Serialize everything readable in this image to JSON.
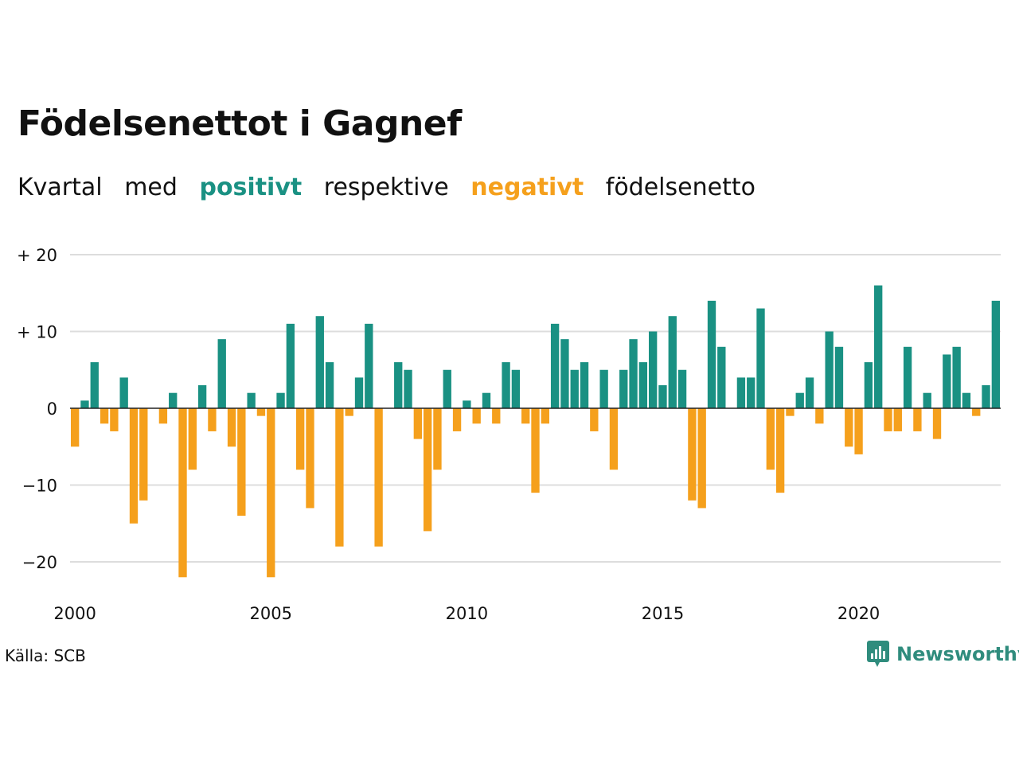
{
  "title": "Födelsenettot i Gagnef",
  "subtitle": {
    "w1": "Kvartal",
    "w2": "med",
    "positive": "positivt",
    "w4": "respektive",
    "negative": "negativt",
    "w6": "födelsenetto"
  },
  "source": "Källa: SCB",
  "brand": "Newsworthy",
  "colors": {
    "positive": "#1a9183",
    "negative": "#f5a01c",
    "grid": "#dddddd",
    "axis": "#222222"
  },
  "chart_data": {
    "type": "bar",
    "x_start_year": 2000,
    "periods_per_year": 4,
    "ylim": [
      -24,
      20
    ],
    "yticks": [
      {
        "value": 20,
        "label": "+ 20"
      },
      {
        "value": 10,
        "label": "+ 10"
      },
      {
        "value": 0,
        "label": "0"
      },
      {
        "value": -10,
        "label": "−10"
      },
      {
        "value": -20,
        "label": "−20"
      }
    ],
    "xticks": [
      {
        "value": 2000,
        "label": "2000"
      },
      {
        "value": 2005,
        "label": "2005"
      },
      {
        "value": 2010,
        "label": "2010"
      },
      {
        "value": 2015,
        "label": "2015"
      },
      {
        "value": 2020,
        "label": "2020"
      }
    ],
    "values": [
      -5,
      1,
      6,
      -2,
      -3,
      4,
      -15,
      -12,
      0,
      -2,
      2,
      -22,
      -8,
      3,
      -3,
      9,
      -5,
      -14,
      2,
      -1,
      -22,
      2,
      11,
      -8,
      -13,
      12,
      6,
      -18,
      -1,
      4,
      11,
      -18,
      0,
      6,
      5,
      -4,
      -16,
      -8,
      5,
      -3,
      1,
      -2,
      2,
      -2,
      6,
      5,
      -2,
      -11,
      -2,
      11,
      9,
      5,
      6,
      -3,
      5,
      -8,
      5,
      9,
      6,
      10,
      3,
      12,
      5,
      -12,
      -13,
      14,
      8,
      0,
      4,
      4,
      13,
      -8,
      -11,
      -1,
      2,
      4,
      -2,
      10,
      8,
      -5,
      -6,
      6,
      16,
      -3,
      -3,
      8,
      -3,
      2,
      -4,
      7,
      8,
      2,
      -1,
      3,
      14
    ]
  }
}
